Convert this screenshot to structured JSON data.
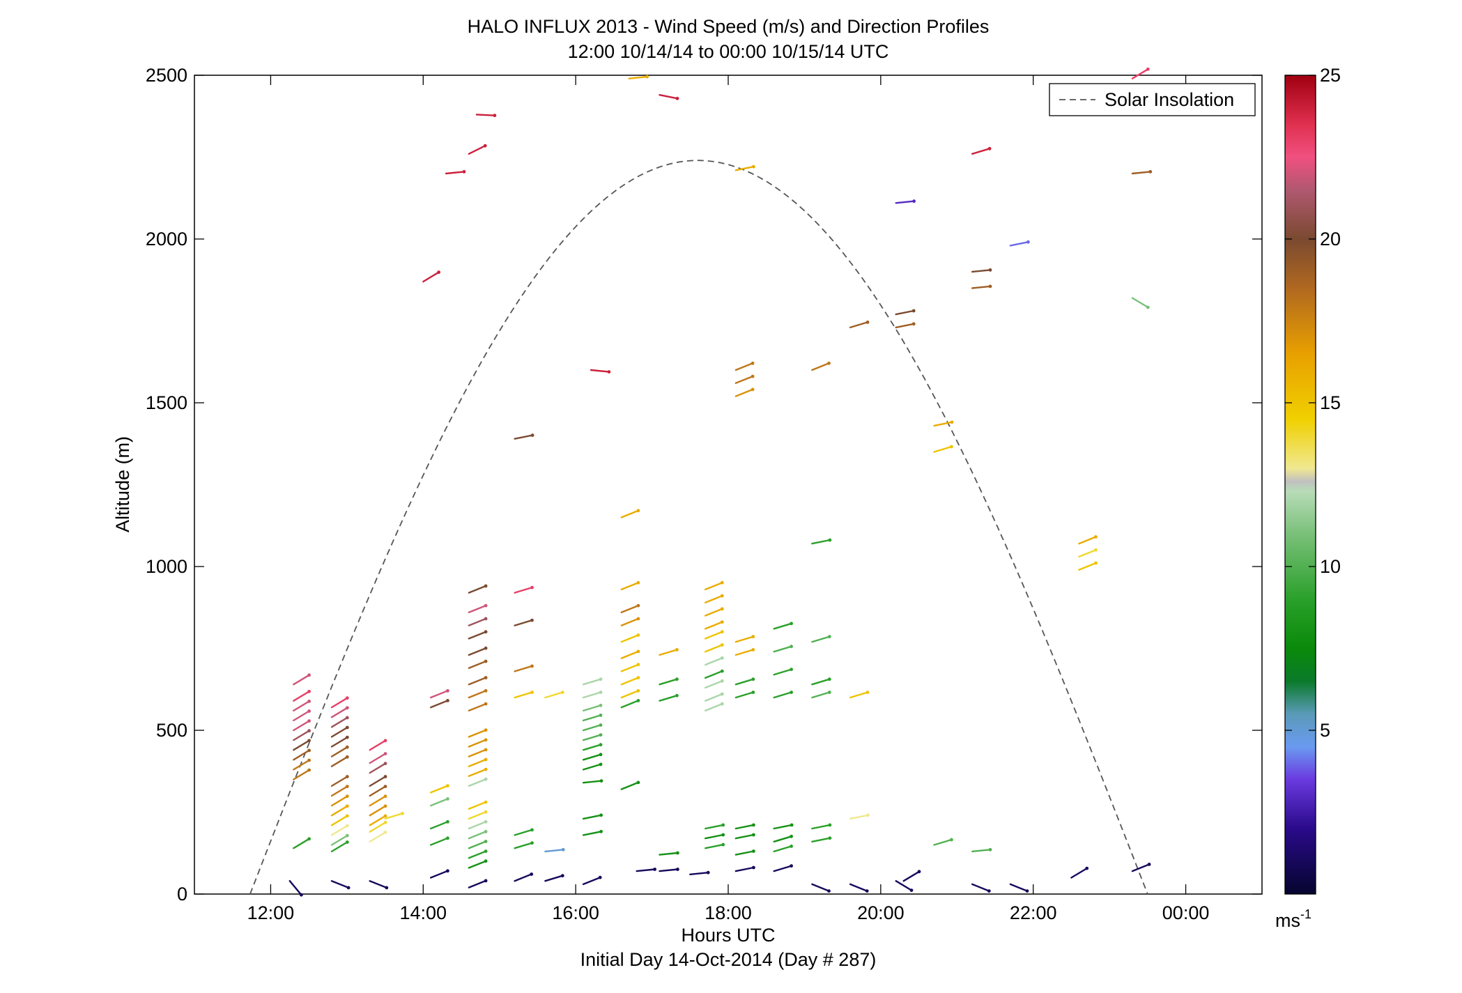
{
  "chart_data": {
    "type": "scatter",
    "title": "HALO INFLUX 2013 - Wind Speed (m/s) and Direction Profiles",
    "subtitle": "12:00 10/14/14 to 00:00 10/15/14  UTC",
    "xlabel": "Hours UTC",
    "xlabel2": "Initial Day 14-Oct-2014 (Day # 287)",
    "ylabel": "Altitude (m)",
    "xlim": [
      11,
      25
    ],
    "ylim": [
      0,
      2500
    ],
    "x_ticks": [
      12,
      14,
      16,
      18,
      20,
      22,
      24
    ],
    "x_tick_labels": [
      "12:00",
      "14:00",
      "16:00",
      "18:00",
      "20:00",
      "22:00",
      "00:00"
    ],
    "y_ticks": [
      0,
      500,
      1000,
      1500,
      2000,
      2500
    ],
    "y_tick_labels": [
      "0",
      "500",
      "1000",
      "1500",
      "2000",
      "2500"
    ],
    "legend": {
      "label": "Solar Insolation",
      "placement": "top-right"
    },
    "colorbar": {
      "range": [
        0,
        25
      ],
      "ticks": [
        5,
        10,
        15,
        20,
        25
      ],
      "tick_labels": [
        "5",
        "10",
        "15",
        "20",
        "25"
      ],
      "unit": "ms",
      "unit_sup": "-1",
      "stops": [
        {
          "v": 0,
          "c": "#05052e"
        },
        {
          "v": 2,
          "c": "#2a0a8a"
        },
        {
          "v": 3.5,
          "c": "#6a3ae0"
        },
        {
          "v": 4.5,
          "c": "#6a9af0"
        },
        {
          "v": 5.5,
          "c": "#5a9ab8"
        },
        {
          "v": 6.5,
          "c": "#0a7a2a"
        },
        {
          "v": 7.5,
          "c": "#0a8a0a"
        },
        {
          "v": 9,
          "c": "#2aa02a"
        },
        {
          "v": 11,
          "c": "#7ac07a"
        },
        {
          "v": 12.3,
          "c": "#b8dcb8"
        },
        {
          "v": 12.6,
          "c": "#c0c0c0"
        },
        {
          "v": 13,
          "c": "#f0e890"
        },
        {
          "v": 14.5,
          "c": "#f0d000"
        },
        {
          "v": 16.5,
          "c": "#e8a000"
        },
        {
          "v": 18.5,
          "c": "#b06820"
        },
        {
          "v": 20,
          "c": "#7a4a30"
        },
        {
          "v": 21.5,
          "c": "#b05870"
        },
        {
          "v": 22.5,
          "c": "#f05080"
        },
        {
          "v": 23.5,
          "c": "#e03050"
        },
        {
          "v": 25,
          "c": "#a00010"
        }
      ]
    },
    "solar_insolation": {
      "sunrise": 11.73,
      "sunset": 23.5,
      "peak_time": 17.6,
      "peak_altitude": 2240
    },
    "series": [
      {
        "values": [
          [
            12.3,
            640,
            22,
            0.6
          ],
          [
            12.3,
            590,
            23,
            0.6
          ],
          [
            12.3,
            560,
            22,
            0.6
          ],
          [
            12.3,
            530,
            22,
            0.6
          ],
          [
            12.3,
            500,
            22,
            0.6
          ],
          [
            12.3,
            470,
            21,
            0.6
          ],
          [
            12.3,
            440,
            20,
            0.6
          ],
          [
            12.3,
            410,
            19,
            0.6
          ],
          [
            12.3,
            380,
            18,
            0.6
          ],
          [
            12.3,
            350,
            18,
            0.6
          ],
          [
            12.3,
            140,
            9,
            0.6
          ],
          [
            12.25,
            40,
            1,
            -1.2
          ],
          [
            12.8,
            570,
            23,
            0.6
          ],
          [
            12.8,
            540,
            22,
            0.6
          ],
          [
            12.8,
            510,
            21,
            0.6
          ],
          [
            12.8,
            480,
            20,
            0.6
          ],
          [
            12.8,
            450,
            20,
            0.6
          ],
          [
            12.8,
            420,
            19,
            0.6
          ],
          [
            12.8,
            390,
            19,
            0.6
          ],
          [
            12.8,
            330,
            19,
            0.6
          ],
          [
            12.8,
            300,
            18,
            0.6
          ],
          [
            12.8,
            270,
            17,
            0.6
          ],
          [
            12.8,
            240,
            16,
            0.6
          ],
          [
            12.8,
            210,
            15,
            0.6
          ],
          [
            12.8,
            180,
            13,
            0.6
          ],
          [
            12.8,
            150,
            11,
            0.6
          ],
          [
            12.8,
            130,
            9,
            0.6
          ],
          [
            12.8,
            40,
            1,
            -0.4
          ],
          [
            13.3,
            440,
            23,
            0.6
          ],
          [
            13.3,
            400,
            22,
            0.6
          ],
          [
            13.3,
            370,
            21,
            0.6
          ],
          [
            13.3,
            330,
            20,
            0.6
          ],
          [
            13.3,
            300,
            19,
            0.6
          ],
          [
            13.3,
            270,
            17,
            0.6
          ],
          [
            13.3,
            240,
            17,
            0.6
          ],
          [
            13.3,
            210,
            16,
            0.6
          ],
          [
            13.3,
            190,
            14,
            0.6
          ],
          [
            13.3,
            160,
            13,
            0.6
          ],
          [
            13.3,
            40,
            1,
            -0.4
          ],
          [
            13.5,
            230,
            14,
            0.3
          ],
          [
            14.1,
            600,
            22,
            0.4
          ],
          [
            14.1,
            570,
            20,
            0.4
          ],
          [
            14.1,
            310,
            15,
            0.4
          ],
          [
            14.1,
            270,
            11,
            0.4
          ],
          [
            14.1,
            200,
            9,
            0.4
          ],
          [
            14.1,
            150,
            9,
            0.4
          ],
          [
            14.1,
            50,
            1,
            0.4
          ],
          [
            14.6,
            920,
            20,
            0.4
          ],
          [
            14.6,
            860,
            22,
            0.4
          ],
          [
            14.6,
            820,
            21,
            0.4
          ],
          [
            14.6,
            780,
            20,
            0.4
          ],
          [
            14.6,
            730,
            20,
            0.4
          ],
          [
            14.6,
            690,
            19,
            0.4
          ],
          [
            14.6,
            640,
            19,
            0.4
          ],
          [
            14.6,
            600,
            18,
            0.4
          ],
          [
            14.6,
            560,
            18,
            0.4
          ],
          [
            14.6,
            480,
            17,
            0.4
          ],
          [
            14.6,
            450,
            17,
            0.4
          ],
          [
            14.6,
            420,
            17,
            0.4
          ],
          [
            14.6,
            390,
            16,
            0.4
          ],
          [
            14.6,
            360,
            16,
            0.4
          ],
          [
            14.6,
            330,
            12,
            0.4
          ],
          [
            14.6,
            260,
            15,
            0.4
          ],
          [
            14.6,
            230,
            14,
            0.4
          ],
          [
            14.6,
            200,
            12,
            0.4
          ],
          [
            14.6,
            170,
            11,
            0.4
          ],
          [
            14.6,
            140,
            10,
            0.4
          ],
          [
            14.6,
            110,
            9,
            0.4
          ],
          [
            14.6,
            80,
            8,
            0.4
          ],
          [
            14.6,
            20,
            1,
            0.4
          ],
          [
            15.2,
            920,
            23,
            0.3
          ],
          [
            15.2,
            820,
            20,
            0.3
          ],
          [
            15.2,
            680,
            18,
            0.3
          ],
          [
            15.2,
            600,
            15,
            0.3
          ],
          [
            15.2,
            1390,
            20,
            0.2
          ],
          [
            15.2,
            180,
            9,
            0.3
          ],
          [
            15.2,
            140,
            9,
            0.3
          ],
          [
            15.2,
            40,
            1,
            0.4
          ],
          [
            15.6,
            600,
            14,
            0.3
          ],
          [
            15.6,
            130,
            5,
            0.1
          ],
          [
            15.6,
            40,
            1,
            0.3
          ],
          [
            16.1,
            640,
            12,
            0.3
          ],
          [
            16.1,
            600,
            12,
            0.3
          ],
          [
            16.1,
            560,
            11,
            0.3
          ],
          [
            16.1,
            530,
            10,
            0.3
          ],
          [
            16.1,
            500,
            10,
            0.3
          ],
          [
            16.1,
            470,
            10,
            0.3
          ],
          [
            16.1,
            440,
            9,
            0.3
          ],
          [
            16.1,
            410,
            8,
            0.3
          ],
          [
            16.1,
            380,
            8,
            0.3
          ],
          [
            16.1,
            340,
            8,
            0.1
          ],
          [
            16.6,
            320,
            8,
            0.4
          ],
          [
            16.1,
            230,
            8,
            0.2
          ],
          [
            16.1,
            180,
            8,
            0.2
          ],
          [
            16.1,
            30,
            1,
            0.4
          ],
          [
            16.6,
            1150,
            16,
            0.4
          ],
          [
            16.6,
            930,
            16,
            0.4
          ],
          [
            16.6,
            860,
            18,
            0.4
          ],
          [
            16.6,
            820,
            17,
            0.4
          ],
          [
            16.6,
            770,
            15,
            0.4
          ],
          [
            16.6,
            720,
            16,
            0.4
          ],
          [
            16.6,
            680,
            15,
            0.4
          ],
          [
            16.6,
            640,
            15,
            0.4
          ],
          [
            16.6,
            600,
            15,
            0.4
          ],
          [
            16.6,
            570,
            9,
            0.4
          ],
          [
            16.7,
            2490,
            16,
            0.1
          ],
          [
            16.8,
            70,
            1,
            0.1
          ],
          [
            17.1,
            730,
            16,
            0.3
          ],
          [
            17.1,
            640,
            9,
            0.3
          ],
          [
            17.1,
            590,
            9,
            0.3
          ],
          [
            17.1,
            2440,
            24,
            -0.2
          ],
          [
            17.1,
            120,
            8,
            0.1
          ],
          [
            17.1,
            70,
            1,
            0.1
          ],
          [
            17.5,
            60,
            1,
            0.1
          ],
          [
            17.7,
            930,
            16,
            0.4
          ],
          [
            17.7,
            890,
            16,
            0.4
          ],
          [
            17.7,
            850,
            16,
            0.4
          ],
          [
            17.7,
            810,
            16,
            0.4
          ],
          [
            17.7,
            780,
            15,
            0.4
          ],
          [
            17.7,
            740,
            15,
            0.4
          ],
          [
            17.7,
            700,
            12,
            0.4
          ],
          [
            17.7,
            660,
            9,
            0.4
          ],
          [
            17.7,
            630,
            12,
            0.4
          ],
          [
            17.7,
            590,
            12,
            0.4
          ],
          [
            17.7,
            560,
            12,
            0.4
          ],
          [
            17.7,
            200,
            9,
            0.2
          ],
          [
            17.7,
            170,
            8,
            0.2
          ],
          [
            17.7,
            140,
            9,
            0.2
          ],
          [
            18.1,
            1600,
            18,
            0.4
          ],
          [
            18.1,
            1560,
            18,
            0.4
          ],
          [
            18.1,
            1520,
            17,
            0.4
          ],
          [
            18.1,
            2210,
            16,
            0.2
          ],
          [
            18.1,
            770,
            16,
            0.3
          ],
          [
            18.1,
            730,
            16,
            0.3
          ],
          [
            18.1,
            640,
            9,
            0.3
          ],
          [
            18.1,
            600,
            9,
            0.3
          ],
          [
            18.1,
            200,
            8,
            0.2
          ],
          [
            18.1,
            170,
            8,
            0.2
          ],
          [
            18.1,
            120,
            8,
            0.2
          ],
          [
            18.1,
            70,
            1,
            0.2
          ],
          [
            18.6,
            810,
            9,
            0.3
          ],
          [
            18.6,
            740,
            10,
            0.3
          ],
          [
            18.6,
            670,
            9,
            0.3
          ],
          [
            18.6,
            600,
            9,
            0.3
          ],
          [
            18.6,
            200,
            8,
            0.2
          ],
          [
            18.6,
            160,
            8,
            0.3
          ],
          [
            18.6,
            130,
            9,
            0.3
          ],
          [
            18.6,
            70,
            1,
            0.3
          ],
          [
            19.1,
            1600,
            18,
            0.4
          ],
          [
            19.1,
            1070,
            9,
            0.2
          ],
          [
            19.1,
            770,
            10,
            0.3
          ],
          [
            19.1,
            640,
            9,
            0.3
          ],
          [
            19.1,
            600,
            10,
            0.3
          ],
          [
            19.1,
            200,
            9,
            0.2
          ],
          [
            19.1,
            160,
            9,
            0.2
          ],
          [
            19.1,
            30,
            1,
            -0.4
          ],
          [
            19.6,
            1730,
            19,
            0.3
          ],
          [
            19.6,
            600,
            15,
            0.3
          ],
          [
            19.6,
            230,
            13,
            0.2
          ],
          [
            19.6,
            30,
            1,
            -0.4
          ],
          [
            20.2,
            1770,
            20,
            0.2
          ],
          [
            20.2,
            1730,
            19,
            0.2
          ],
          [
            20.2,
            2110,
            3,
            0.1
          ],
          [
            20.2,
            40,
            1,
            -0.6
          ],
          [
            20.3,
            40,
            1,
            0.6
          ],
          [
            20.7,
            1430,
            16,
            0.2
          ],
          [
            20.7,
            1350,
            15,
            0.3
          ],
          [
            20.7,
            150,
            10,
            0.3
          ],
          [
            21.2,
            2260,
            24,
            0.3
          ],
          [
            21.2,
            1900,
            20,
            0.1
          ],
          [
            21.2,
            1850,
            19,
            0.1
          ],
          [
            21.2,
            130,
            10,
            0.1
          ],
          [
            21.2,
            30,
            1,
            -0.4
          ],
          [
            21.7,
            1980,
            4,
            0.2
          ],
          [
            21.7,
            30,
            1,
            -0.4
          ],
          [
            22.6,
            1070,
            16,
            0.4
          ],
          [
            22.6,
            1030,
            14,
            0.4
          ],
          [
            22.6,
            990,
            15,
            0.4
          ],
          [
            22.5,
            50,
            1,
            0.6
          ],
          [
            23.3,
            2200,
            19,
            0.1
          ],
          [
            23.3,
            2490,
            23,
            0.6
          ],
          [
            23.3,
            1820,
            11,
            -0.6
          ],
          [
            23.3,
            70,
            1,
            0.4
          ],
          [
            14.0,
            1870,
            24,
            0.6
          ],
          [
            14.3,
            2200,
            24,
            0.1
          ],
          [
            14.6,
            2260,
            24,
            0.5
          ],
          [
            14.7,
            2380,
            24,
            -0.05
          ],
          [
            16.2,
            1600,
            24,
            -0.1
          ]
        ]
      }
    ]
  }
}
